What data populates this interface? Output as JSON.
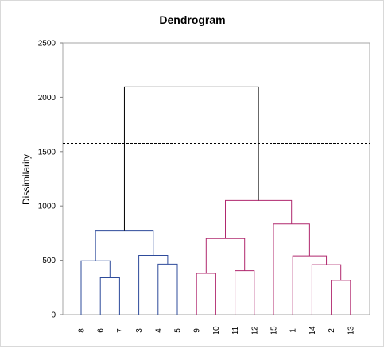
{
  "chart_data": {
    "type": "dendrogram",
    "title": "Dendrogram",
    "xlabel": "",
    "ylabel": "Dissimilarity",
    "ylim": [
      0,
      2500
    ],
    "yticks": [
      0,
      500,
      1000,
      1500,
      2000,
      2500
    ],
    "leaf_order": [
      "8",
      "6",
      "7",
      "3",
      "4",
      "5",
      "9",
      "10",
      "11",
      "12",
      "15",
      "1",
      "14",
      "2",
      "13"
    ],
    "cut_line": 1575,
    "colors": {
      "cluster_1": "#2e4b9b",
      "cluster_2": "#b0286e",
      "root": "#000000",
      "cut_line": "#000000",
      "plot_border": "#a6a6a6"
    },
    "merges": [
      {
        "left": "6",
        "right": "7",
        "height": 340,
        "group": "cluster_1"
      },
      {
        "left": "8",
        "right": "6-7",
        "height": 495,
        "group": "cluster_1"
      },
      {
        "left": "4",
        "right": "5",
        "height": 465,
        "group": "cluster_1"
      },
      {
        "left": "3",
        "right": "4-5",
        "height": 545,
        "group": "cluster_1"
      },
      {
        "left": "8-6-7",
        "right": "3-4-5",
        "height": 770,
        "group": "cluster_1"
      },
      {
        "left": "9",
        "right": "10",
        "height": 380,
        "group": "cluster_2"
      },
      {
        "left": "11",
        "right": "12",
        "height": 405,
        "group": "cluster_2"
      },
      {
        "left": "9-10",
        "right": "11-12",
        "height": 700,
        "group": "cluster_2"
      },
      {
        "left": "2",
        "right": "13",
        "height": 315,
        "group": "cluster_2"
      },
      {
        "left": "14",
        "right": "2-13",
        "height": 460,
        "group": "cluster_2"
      },
      {
        "left": "1",
        "right": "14-2-13",
        "height": 540,
        "group": "cluster_2"
      },
      {
        "left": "15",
        "right": "1-14-2-13",
        "height": 835,
        "group": "cluster_2"
      },
      {
        "left": "9-10-11-12",
        "right": "15-1-14-2-13",
        "height": 1050,
        "group": "cluster_2"
      },
      {
        "left": "cluster_1",
        "right": "cluster_2",
        "height": 2095,
        "group": "root"
      }
    ]
  }
}
